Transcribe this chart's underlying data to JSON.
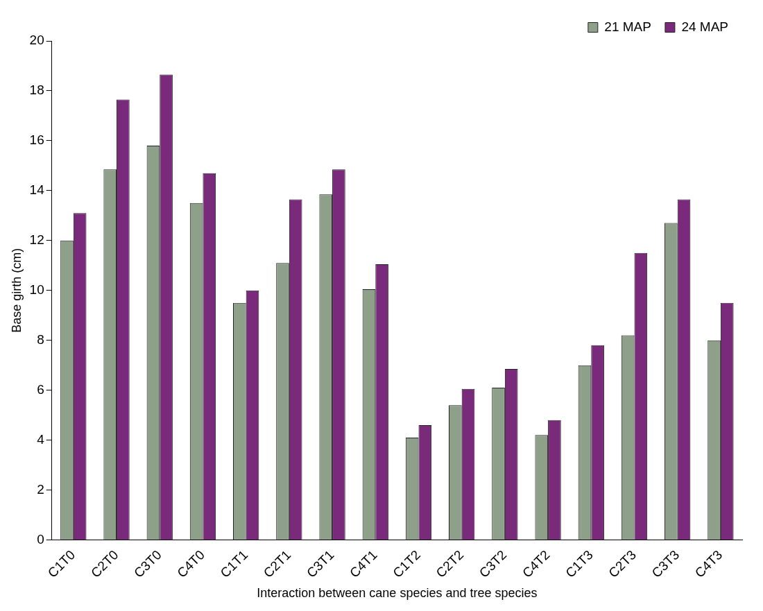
{
  "chart_data": {
    "type": "bar",
    "xlabel": "Interaction between cane species and tree species",
    "ylabel": "Base girth (cm)",
    "categories": [
      "C1T0",
      "C2T0",
      "C3T0",
      "C4T0",
      "C1T1",
      "C2T1",
      "C3T1",
      "C4T1",
      "C1T2",
      "C2T2",
      "C3T2",
      "C4T2",
      "C1T3",
      "C2T3",
      "C3T3",
      "C4T3"
    ],
    "series": [
      {
        "name": "21 MAP",
        "color": "#8fa08a",
        "values": [
          12.0,
          14.85,
          15.8,
          13.5,
          9.5,
          11.1,
          13.85,
          10.05,
          4.1,
          5.4,
          6.1,
          4.2,
          7.0,
          8.2,
          12.7,
          8.0
        ]
      },
      {
        "name": "24 MAP",
        "color": "#7a2a7a",
        "values": [
          13.1,
          17.65,
          18.65,
          14.7,
          10.0,
          13.65,
          14.85,
          11.05,
          4.6,
          6.05,
          6.85,
          4.8,
          7.8,
          11.5,
          13.65,
          9.5
        ]
      }
    ],
    "ylim": [
      0,
      20
    ],
    "yticks": [
      0,
      2,
      4,
      6,
      8,
      10,
      12,
      14,
      16,
      18,
      20
    ],
    "grid": false,
    "legend": "top right"
  }
}
